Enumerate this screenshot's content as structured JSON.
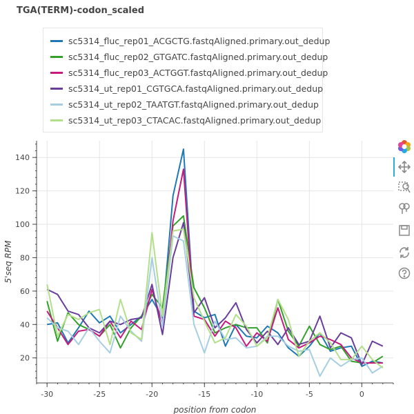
{
  "title": "TGA(TERM)-codon_scaled",
  "toolbar": {
    "items": [
      {
        "name": "bokeh-logo-icon"
      },
      {
        "name": "pan-tool-icon"
      },
      {
        "name": "box-zoom-tool-icon"
      },
      {
        "name": "wheel-zoom-tool-icon"
      },
      {
        "name": "save-tool-icon"
      },
      {
        "name": "reset-tool-icon"
      },
      {
        "name": "help-tool-icon"
      }
    ]
  },
  "chart_data": {
    "type": "line",
    "title": "TGA(TERM)-codon_scaled",
    "xlabel": "position from codon",
    "ylabel": "5'seq RPM",
    "xlim": [
      -31,
      3
    ],
    "ylim": [
      5,
      150
    ],
    "xticks": [
      -30,
      -25,
      -20,
      -15,
      -10,
      -5,
      0
    ],
    "xtick_labels": [
      "-30",
      "-25",
      "-20",
      "-15",
      "-10",
      "-5",
      "0"
    ],
    "yticks": [
      20,
      40,
      60,
      80,
      100,
      120,
      140
    ],
    "ytick_labels": [
      "20",
      "40",
      "60",
      "80",
      "100",
      "120",
      "140"
    ],
    "grid": true,
    "legend_position": "top-left",
    "x": [
      -30,
      -29,
      -28,
      -27,
      -26,
      -25,
      -24,
      -23,
      -22,
      -21,
      -20,
      -19,
      -18,
      -17,
      -16,
      -15,
      -14,
      -13,
      -12,
      -11,
      -10,
      -9,
      -8,
      -7,
      -6,
      -5,
      -4,
      -3,
      -2,
      -1,
      0,
      1,
      2
    ],
    "series": [
      {
        "name": "sc5314_fluc_rep01_ACGCTG.fastqAligned.primary.out_dedup",
        "color": "#1f78b4",
        "values": [
          40,
          41,
          29,
          38,
          48,
          41,
          45,
          35,
          40,
          45,
          55,
          44,
          117,
          145,
          48,
          44,
          46,
          27,
          40,
          33,
          32,
          39,
          35,
          26,
          21,
          27,
          35,
          24,
          26,
          27,
          15,
          18,
          17
        ]
      },
      {
        "name": "sc5314_fluc_rep02_GTGATC.fastqAligned.primary.out_dedup",
        "color": "#33a02c",
        "values": [
          54,
          30,
          47,
          40,
          37,
          33,
          40,
          26,
          38,
          45,
          58,
          50,
          99,
          105,
          62,
          50,
          35,
          38,
          40,
          38,
          38,
          29,
          55,
          36,
          27,
          39,
          28,
          25,
          27,
          18,
          17,
          17,
          21
        ]
      },
      {
        "name": "sc5314_fluc_rep03_ACTGGT.fastqAligned.primary.out_dedup",
        "color": "#c51b7d",
        "values": [
          48,
          38,
          28,
          36,
          37,
          33,
          42,
          32,
          42,
          37,
          61,
          40,
          102,
          133,
          45,
          43,
          33,
          42,
          38,
          27,
          35,
          30,
          50,
          31,
          26,
          29,
          33,
          31,
          28,
          20,
          17,
          17,
          17
        ]
      },
      {
        "name": "sc5314_ut_rep01_CGTGCA.fastqAligned.primary.out_dedup",
        "color": "#6a3d9a",
        "values": [
          61,
          58,
          48,
          46,
          38,
          35,
          42,
          40,
          43,
          44,
          64,
          34,
          80,
          101,
          47,
          56,
          38,
          44,
          53,
          37,
          29,
          36,
          28,
          38,
          28,
          30,
          45,
          26,
          35,
          32,
          16,
          30,
          27
        ]
      },
      {
        "name": "sc5314_ut_rep02_TAATGT.fastqAligned.primary.out_dedup",
        "color": "#a6cee3",
        "values": [
          44,
          38,
          36,
          28,
          38,
          30,
          23,
          45,
          36,
          30,
          80,
          39,
          93,
          90,
          40,
          23,
          42,
          31,
          32,
          26,
          27,
          33,
          33,
          27,
          24,
          25,
          9,
          20,
          15,
          19,
          20,
          11,
          15
        ]
      },
      {
        "name": "sc5314_ut_rep03_CTACAC.fastqAligned.primary.out_dedup",
        "color": "#b2df8a",
        "values": [
          64,
          33,
          46,
          43,
          47,
          49,
          28,
          55,
          35,
          31,
          95,
          45,
          96,
          97,
          56,
          42,
          29,
          32,
          46,
          39,
          27,
          32,
          55,
          43,
          21,
          30,
          35,
          29,
          19,
          19,
          27,
          19,
          14
        ]
      }
    ]
  }
}
